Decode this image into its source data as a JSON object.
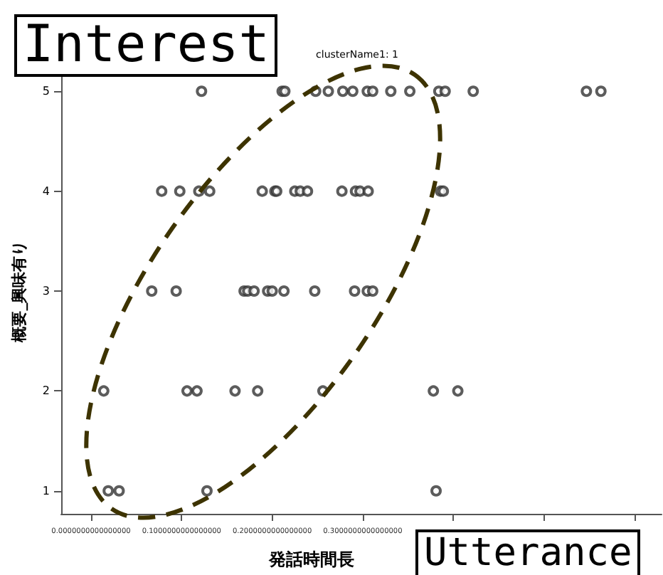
{
  "chart_data": {
    "type": "scatter",
    "title": "clusterName1: 1",
    "xlabel": "発話時間長",
    "ylabel": "概要_興味有り",
    "annotations": [
      "Interest",
      "Utterance"
    ],
    "marker": "circle",
    "grid": false,
    "series": [
      {
        "color": "#333333",
        "x": [
          0.122,
          0.211,
          0.214,
          0.248,
          0.262,
          0.278,
          0.289,
          0.305,
          0.311,
          0.331,
          0.352,
          0.384,
          0.391,
          0.422,
          0.547,
          0.563,
          0.078,
          0.098,
          0.119,
          0.131,
          0.189,
          0.203,
          0.205,
          0.225,
          0.231,
          0.239,
          0.277,
          0.292,
          0.297,
          0.306,
          0.386,
          0.389,
          0.067,
          0.094,
          0.169,
          0.173,
          0.18,
          0.195,
          0.2,
          0.213,
          0.247,
          0.291,
          0.305,
          0.311,
          0.014,
          0.106,
          0.117,
          0.159,
          0.184,
          0.256,
          0.378,
          0.405,
          0.019,
          0.031,
          0.128,
          0.381
        ],
        "values": [
          5,
          5,
          5,
          5,
          5,
          5,
          5,
          5,
          5,
          5,
          5,
          5,
          5,
          5,
          5,
          5,
          4,
          4,
          4,
          4,
          4,
          4,
          4,
          4,
          4,
          4,
          4,
          4,
          4,
          4,
          4,
          4,
          3,
          3,
          3,
          3,
          3,
          3,
          3,
          3,
          3,
          3,
          3,
          3,
          2,
          2,
          2,
          2,
          2,
          2,
          2,
          2,
          1,
          1,
          1,
          1
        ]
      }
    ],
    "xlim": [
      -0.033,
      0.63
    ],
    "xticks": [
      {
        "value": 0,
        "label": "0.0000000000000000"
      },
      {
        "value": 0.1,
        "label": "0.1000000000000000"
      },
      {
        "value": 0.2,
        "label": "0.2000000000000000"
      },
      {
        "value": 0.3,
        "label": "0.3000000000000000"
      },
      {
        "value": 0.4,
        "label": null
      },
      {
        "value": 0.5,
        "label": null
      },
      {
        "value": 0.6,
        "label": null
      }
    ],
    "ylim": [
      0.77,
      5.23
    ],
    "yticks": [
      1,
      2,
      3,
      4,
      5
    ]
  }
}
